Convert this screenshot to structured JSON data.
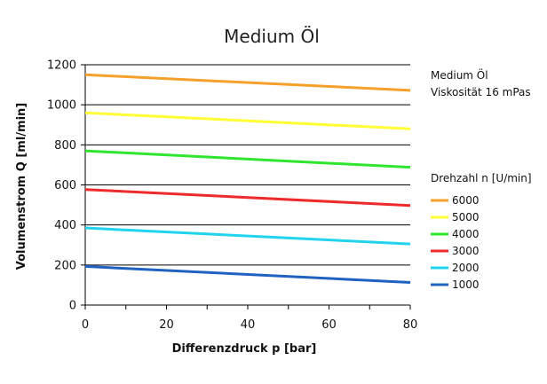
{
  "chart_data": {
    "type": "line",
    "title": "Medium Öl",
    "xlabel": "Differenzdruck p [bar]",
    "ylabel": "Volumenstrom Q [ml/min]",
    "xlim": [
      0,
      80
    ],
    "ylim": [
      0,
      1200
    ],
    "xticks": [
      0,
      20,
      40,
      60,
      80
    ],
    "yticks": [
      0,
      200,
      400,
      600,
      800,
      1000,
      1200
    ],
    "grid": "horizontal",
    "notes": [
      "Medium Öl",
      "Viskosität 16 mPas"
    ],
    "legend": {
      "title": "Drehzahl n [U/min]",
      "placement": "right"
    },
    "x": [
      0,
      80
    ],
    "series": [
      {
        "name": "6000",
        "color": "#F5A02A",
        "values": [
          1150,
          1072
        ]
      },
      {
        "name": "5000",
        "color": "#FFFF33",
        "values": [
          960,
          880
        ]
      },
      {
        "name": "4000",
        "color": "#2EE62E",
        "values": [
          770,
          688
        ]
      },
      {
        "name": "3000",
        "color": "#EE2A2A",
        "values": [
          577,
          497
        ]
      },
      {
        "name": "2000",
        "color": "#22D3EE",
        "values": [
          385,
          305
        ]
      },
      {
        "name": "1000",
        "color": "#1F62C0",
        "values": [
          193,
          113
        ]
      }
    ]
  }
}
